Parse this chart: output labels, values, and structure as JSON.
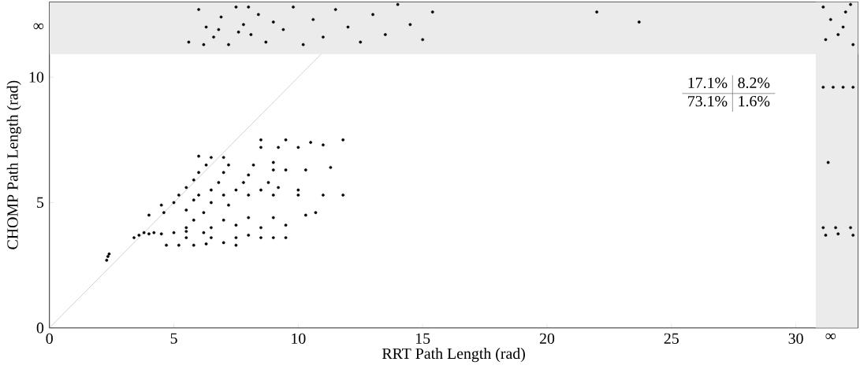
{
  "chart_data": {
    "type": "scatter",
    "xlabel": "RRT Path Length (rad)",
    "ylabel": "CHOMP Path Length (rad)",
    "xlim": [
      0,
      32.5
    ],
    "ylim": [
      0,
      13
    ],
    "xticks": [
      0,
      5,
      10,
      15,
      20,
      25,
      30,
      {
        "value": 31.4,
        "label": "∞"
      }
    ],
    "yticks": [
      0,
      5,
      10,
      {
        "value": 12,
        "label": "∞"
      }
    ],
    "grid": false,
    "marker": "circle",
    "bands": [
      {
        "axis": "y",
        "from": 10.92,
        "to": 13,
        "color": "#ebebeb"
      },
      {
        "axis": "x",
        "from": 30.8,
        "to": 32.5,
        "color": "#ebebeb"
      }
    ],
    "annotations": [
      "17.1%",
      "8.2%",
      "73.1%",
      "1.6%"
    ],
    "series": [
      {
        "type": "line",
        "color": "#b3b3b3",
        "marker": "none",
        "x": [
          0,
          10.92
        ],
        "values": [
          0,
          10.92
        ]
      },
      {
        "color": "#000000",
        "x": [
          2.3,
          2.35,
          2.4,
          3.4,
          3.6,
          3.8,
          4.0,
          4.2,
          4.5,
          5.0,
          5.5,
          6.2,
          4.7,
          5.2,
          5.8,
          6.3,
          7.0,
          7.5,
          5.5,
          6.5,
          7.5,
          8.5,
          9.0,
          9.5,
          8.0,
          5.5,
          6.5,
          7.5,
          8.5,
          9.5,
          5.8,
          7.0,
          8.0,
          9.0,
          10.3,
          10.7,
          4.0,
          4.6,
          5.5,
          6.2,
          4.5,
          5.0,
          5.8,
          6.5,
          7.2,
          5.2,
          6.0,
          7.0,
          8.0,
          9.0,
          10.0,
          11.0,
          11.8,
          5.5,
          6.5,
          7.5,
          8.5,
          9.2,
          10.0,
          5.8,
          6.8,
          7.8,
          8.8,
          6.0,
          7.0,
          8.0,
          9.0,
          9.5,
          10.3,
          11.3,
          6.3,
          7.2,
          8.2,
          9.0,
          6.0,
          6.5,
          7.0,
          8.5,
          9.2,
          10.0,
          11.0,
          8.5,
          9.5,
          10.5,
          11.8,
          5.6,
          6.0,
          6.3,
          6.6,
          6.9,
          7.2,
          7.5,
          7.8,
          8.1,
          8.4,
          8.7,
          9.0,
          9.4,
          9.8,
          10.2,
          10.6,
          11.0,
          11.5,
          12.0,
          12.5,
          13.0,
          13.5,
          14.0,
          14.5,
          15.0,
          15.4,
          22.0,
          23.7,
          6.8,
          7.6,
          8.0,
          6.2,
          31.1,
          31.4,
          31.7,
          32.0,
          32.3,
          31.2,
          31.9,
          32.2,
          31.1,
          31.5,
          31.9,
          32.3,
          31.3,
          31.1,
          31.6,
          32.2,
          31.2,
          31.7,
          32.3
        ],
        "values": [
          2.7,
          2.85,
          2.95,
          3.6,
          3.7,
          3.8,
          3.75,
          3.8,
          3.75,
          3.8,
          3.85,
          3.8,
          3.3,
          3.3,
          3.3,
          3.35,
          3.4,
          3.3,
          3.6,
          3.6,
          3.6,
          3.6,
          3.6,
          3.6,
          3.7,
          4.0,
          4.0,
          4.1,
          4.0,
          4.1,
          4.3,
          4.3,
          4.4,
          4.4,
          4.5,
          4.6,
          4.5,
          4.6,
          4.7,
          4.6,
          4.9,
          5.0,
          5.1,
          5.0,
          4.9,
          5.3,
          5.3,
          5.3,
          5.3,
          5.3,
          5.3,
          5.3,
          5.3,
          5.6,
          5.5,
          5.5,
          5.5,
          5.6,
          5.5,
          5.9,
          5.8,
          5.8,
          5.8,
          6.2,
          6.2,
          6.1,
          6.3,
          6.3,
          6.3,
          6.4,
          6.5,
          6.5,
          6.5,
          6.6,
          6.85,
          6.8,
          6.8,
          7.2,
          7.2,
          7.2,
          7.3,
          7.5,
          7.5,
          7.4,
          7.5,
          11.4,
          12.7,
          12.0,
          11.6,
          12.4,
          11.3,
          12.8,
          12.1,
          11.7,
          12.5,
          11.4,
          12.2,
          11.9,
          12.8,
          11.3,
          12.3,
          11.6,
          12.7,
          12.0,
          11.4,
          12.5,
          11.7,
          12.9,
          12.1,
          11.5,
          12.6,
          12.6,
          12.2,
          11.9,
          11.8,
          12.8,
          11.3,
          12.8,
          12.3,
          11.7,
          12.6,
          11.3,
          11.5,
          12.0,
          12.9,
          9.6,
          9.6,
          9.6,
          9.6,
          6.6,
          4.0,
          4.0,
          4.0,
          3.7,
          3.75,
          3.7
        ]
      }
    ]
  }
}
